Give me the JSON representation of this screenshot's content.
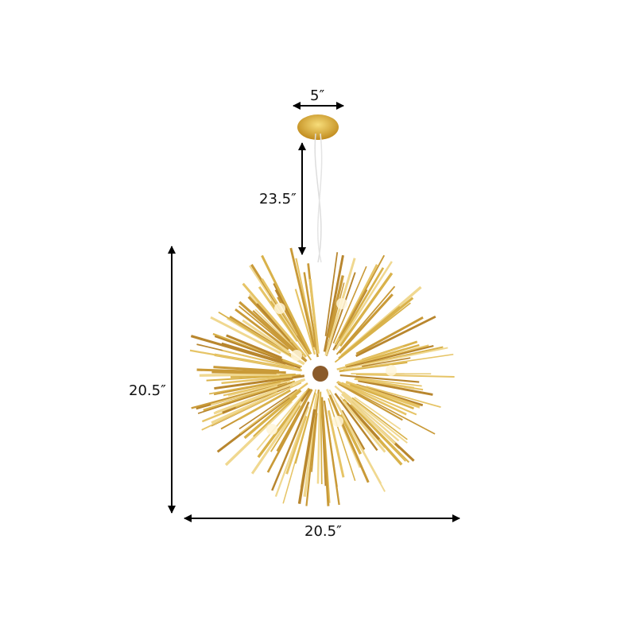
{
  "dimensions": {
    "canopy_width": "5″",
    "cord_length": "23.5″",
    "height": "20.5″",
    "width": "20.5″"
  },
  "colors": {
    "gold": "#d9b24a",
    "arrow": "#000000",
    "background": "#ffffff"
  }
}
